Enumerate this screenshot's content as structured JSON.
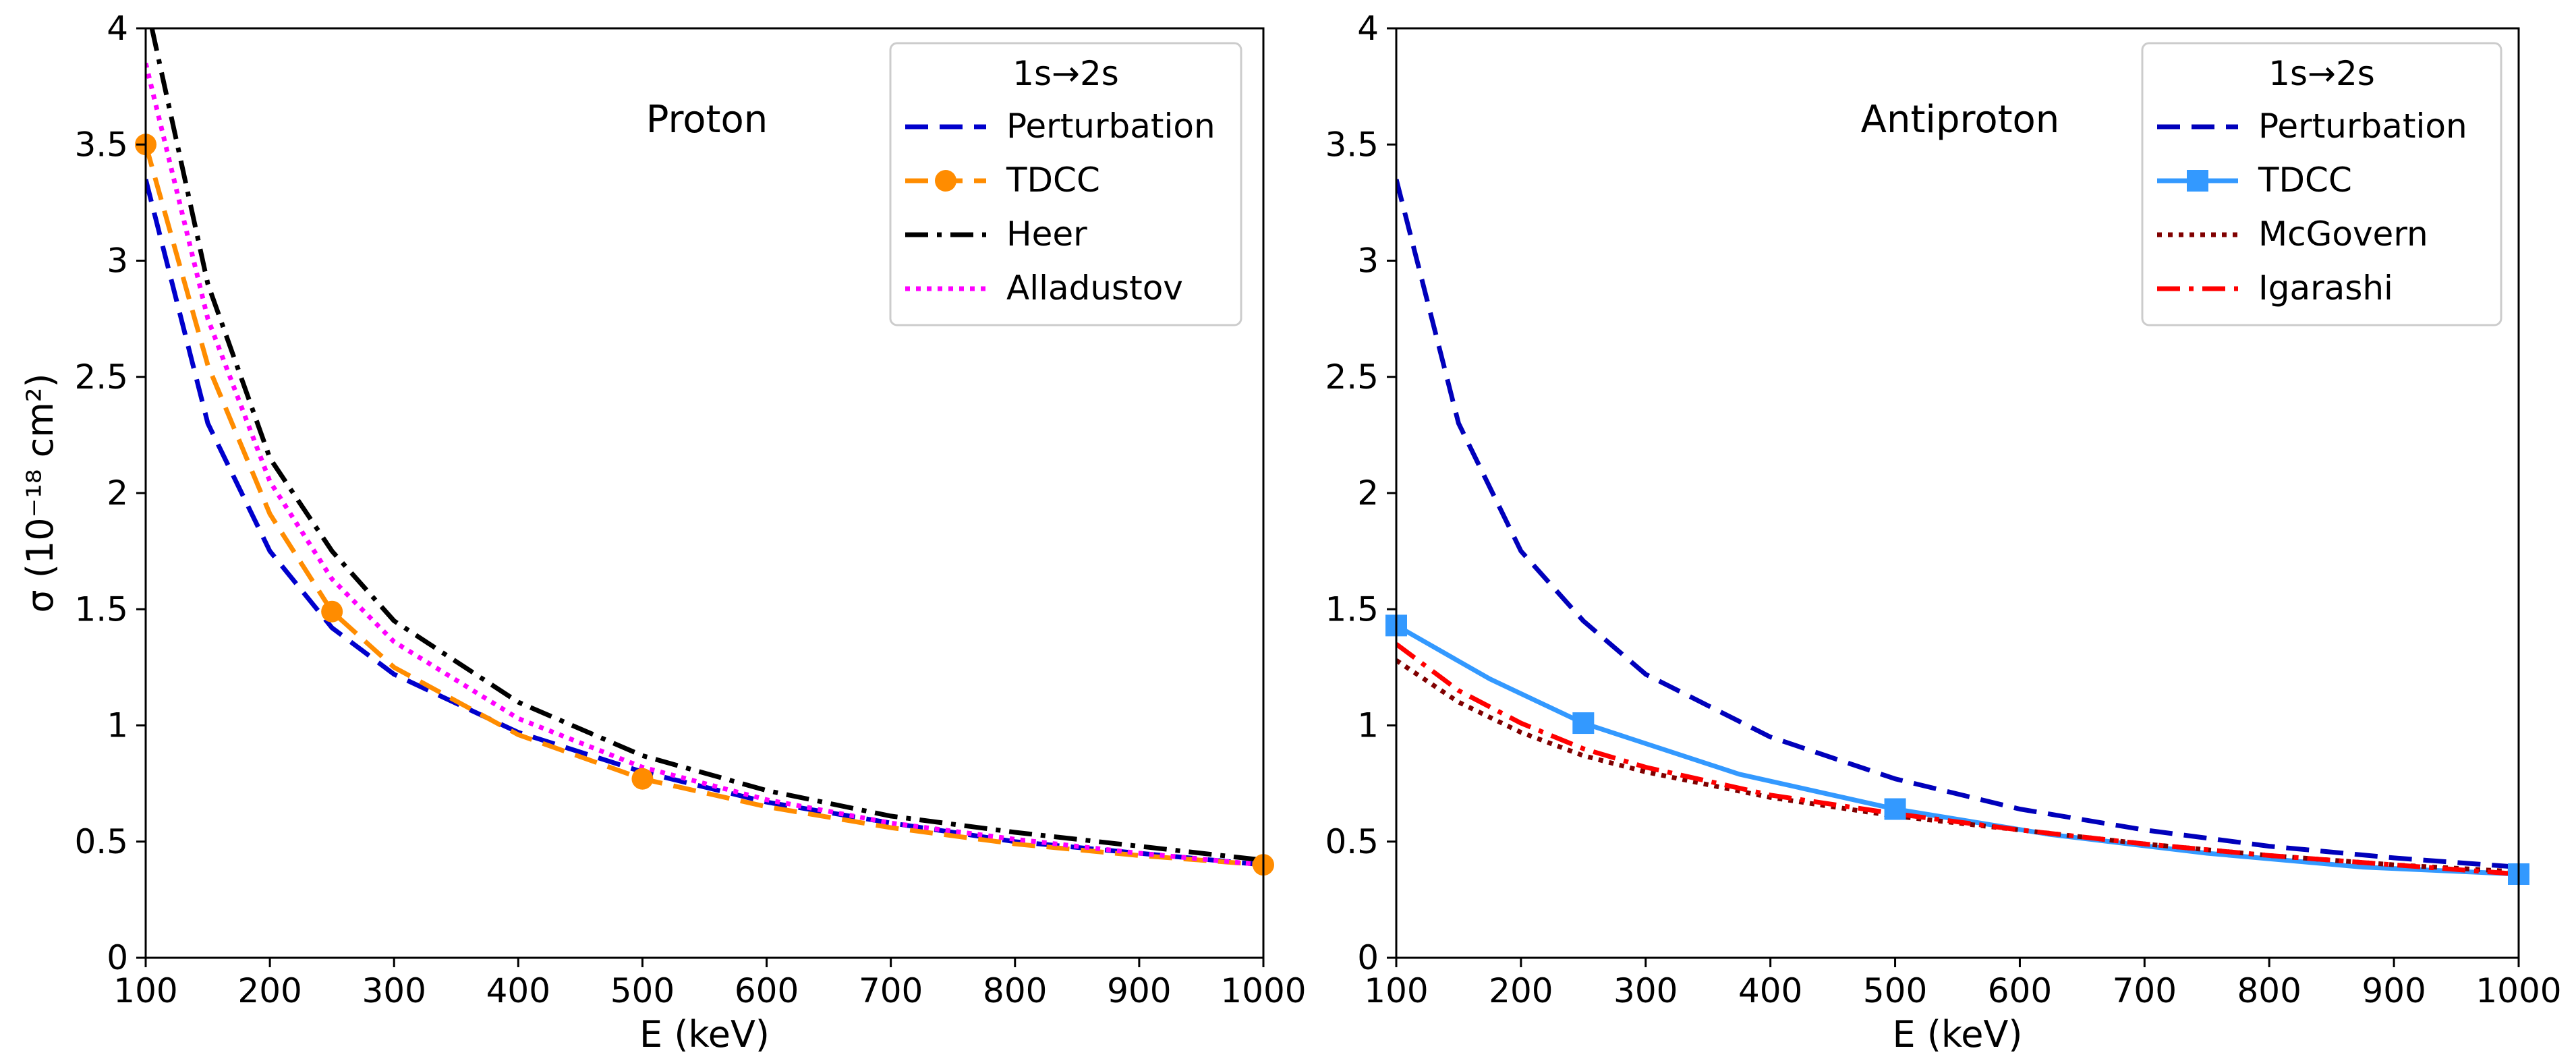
{
  "figure": {
    "y_axis_label": "σ (10⁻¹⁸ cm²)"
  },
  "chart_data": [
    {
      "type": "line",
      "title": "Proton",
      "xlabel": "E (keV)",
      "ylabel": "σ (10⁻¹⁸ cm²)",
      "xlim": [
        100,
        1000
      ],
      "ylim": [
        0,
        4
      ],
      "xticks": [
        "100",
        "200",
        "300",
        "400",
        "500",
        "600",
        "700",
        "800",
        "900",
        "1000"
      ],
      "yticks": [
        "0",
        "0.5",
        "1",
        "1.5",
        "2",
        "2.5",
        "3",
        "3.5",
        "4"
      ],
      "legend": {
        "title": "1s→2s",
        "position": "top-right"
      },
      "series": [
        {
          "name": "Perturbation",
          "style": "dashed",
          "color": "#0000cc",
          "x": [
            100,
            150,
            200,
            250,
            300,
            400,
            500,
            600,
            700,
            800,
            900,
            1000
          ],
          "y": [
            3.35,
            2.3,
            1.75,
            1.42,
            1.22,
            0.97,
            0.8,
            0.67,
            0.58,
            0.5,
            0.45,
            0.4
          ]
        },
        {
          "name": "TDCC",
          "style": "dashed",
          "color": "#ff8c00",
          "markers": "circle",
          "x": [
            100,
            150,
            200,
            250,
            300,
            400,
            500,
            600,
            700,
            800,
            900,
            1000
          ],
          "y": [
            3.5,
            2.55,
            1.91,
            1.49,
            1.25,
            0.96,
            0.77,
            0.65,
            0.56,
            0.49,
            0.44,
            0.4
          ],
          "marker_x": [
            100,
            250,
            500,
            1000
          ],
          "marker_y": [
            3.5,
            1.49,
            0.77,
            0.4
          ]
        },
        {
          "name": "Heer",
          "style": "dashdot",
          "color": "#000000",
          "x": [
            105,
            150,
            200,
            250,
            300,
            400,
            500,
            600,
            700,
            800,
            900,
            1000
          ],
          "y": [
            4.0,
            2.9,
            2.15,
            1.75,
            1.45,
            1.1,
            0.87,
            0.72,
            0.61,
            0.54,
            0.48,
            0.42
          ]
        },
        {
          "name": "Alladustov",
          "style": "dotted",
          "color": "#ff00ff",
          "x": [
            100,
            150,
            200,
            250,
            300,
            400,
            500,
            600,
            700,
            800,
            900,
            1000
          ],
          "y": [
            3.85,
            2.75,
            2.05,
            1.63,
            1.36,
            1.03,
            0.82,
            0.68,
            0.58,
            0.51,
            0.45,
            0.4
          ]
        }
      ]
    },
    {
      "type": "line",
      "title": "Antiproton",
      "xlabel": "E (keV)",
      "xlim": [
        100,
        1000
      ],
      "ylim": [
        0,
        4
      ],
      "xticks": [
        "100",
        "200",
        "300",
        "400",
        "500",
        "600",
        "700",
        "800",
        "900",
        "1000"
      ],
      "yticks": [
        "0",
        "0.5",
        "1",
        "1.5",
        "2",
        "2.5",
        "3",
        "3.5",
        "4"
      ],
      "legend": {
        "title": "1s→2s",
        "position": "top-right"
      },
      "series": [
        {
          "name": "Perturbation",
          "style": "dashed",
          "color": "#0000bb",
          "x": [
            100,
            150,
            200,
            250,
            300,
            400,
            500,
            600,
            700,
            800,
            900,
            1000
          ],
          "y": [
            3.35,
            2.3,
            1.75,
            1.45,
            1.22,
            0.95,
            0.77,
            0.64,
            0.55,
            0.48,
            0.43,
            0.39
          ]
        },
        {
          "name": "TDCC",
          "style": "solid",
          "color": "#3399ff",
          "markers": "square",
          "x": [
            100,
            175,
            250,
            375,
            500,
            625,
            750,
            875,
            1000
          ],
          "y": [
            1.43,
            1.2,
            1.01,
            0.79,
            0.64,
            0.53,
            0.45,
            0.39,
            0.36
          ],
          "marker_x": [
            100,
            250,
            500,
            1000
          ],
          "marker_y": [
            1.43,
            1.01,
            0.64,
            0.36
          ]
        },
        {
          "name": "McGovern",
          "style": "dotted",
          "color": "#800000",
          "x": [
            100,
            150,
            200,
            250,
            300,
            400,
            500,
            600,
            700,
            800,
            900,
            1000
          ],
          "y": [
            1.28,
            1.1,
            0.97,
            0.87,
            0.8,
            0.69,
            0.61,
            0.55,
            0.49,
            0.44,
            0.4,
            0.37
          ]
        },
        {
          "name": "Igarashi",
          "style": "dashdot",
          "color": "#ff0000",
          "x": [
            100,
            150,
            200,
            250,
            300,
            400,
            500,
            600,
            700,
            800,
            900,
            1000
          ],
          "y": [
            1.35,
            1.15,
            1.01,
            0.9,
            0.82,
            0.7,
            0.62,
            0.55,
            0.49,
            0.44,
            0.4,
            0.36
          ]
        }
      ]
    }
  ]
}
